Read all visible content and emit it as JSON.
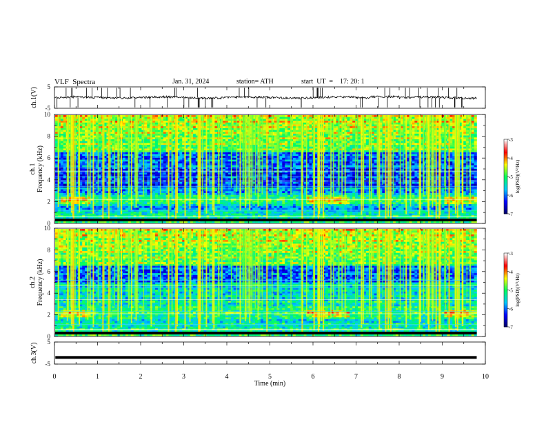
{
  "header": {
    "title": "VLF  Spectra",
    "date": "Jan. 31, 2024",
    "station": "station= ATH",
    "start": "start  UT  =    17: 20: 1"
  },
  "chart_data": [
    {
      "type": "line",
      "name": "ch1-waveform",
      "ylabel": "ch.1(V)",
      "ylim": [
        -5,
        5
      ],
      "yticks": [
        5,
        -5
      ],
      "xlim": [
        0,
        10
      ]
    },
    {
      "type": "heatmap",
      "name": "ch1-spectrogram",
      "ylabel": "ch.1 Frequency (kHz)",
      "ylim": [
        0,
        10
      ],
      "yticks": [
        0,
        2,
        4,
        6,
        8,
        10
      ],
      "xlim": [
        0,
        10
      ],
      "data_xmax": 9.8,
      "colorbar": {
        "label": "log(PSD)(V²/Hz)",
        "ticks": [
          -3,
          -4,
          -5,
          -6,
          -7
        ],
        "range": [
          -7,
          -3
        ]
      }
    },
    {
      "type": "heatmap",
      "name": "ch2-spectrogram",
      "ylabel": "ch.2 Frequency (kHz)",
      "ylim": [
        0,
        10
      ],
      "yticks": [
        0,
        2,
        4,
        6,
        8,
        10
      ],
      "xlim": [
        0,
        10
      ],
      "data_xmax": 9.8,
      "colorbar": {
        "label": "log(PSD)(V²/Hz)",
        "ticks": [
          -3,
          -4,
          -5,
          -6,
          -7
        ],
        "range": [
          -7,
          -3
        ]
      }
    },
    {
      "type": "line",
      "name": "ch3-waveform",
      "ylabel": "ch.3(V)",
      "ylim": [
        -5,
        5
      ],
      "yticks": [
        5,
        -5
      ],
      "xlim": [
        0,
        10
      ],
      "values_constant": -2
    }
  ],
  "xaxis": {
    "label": "Time  (min)",
    "ticks": [
      0,
      1,
      2,
      3,
      4,
      5,
      6,
      7,
      8,
      9,
      10
    ]
  },
  "colors": {
    "axis": "#000000",
    "colormap": [
      "#000060",
      "#0000ff",
      "#00c8ff",
      "#00ff60",
      "#ffff00",
      "#ff0000",
      "#ffffff"
    ]
  }
}
